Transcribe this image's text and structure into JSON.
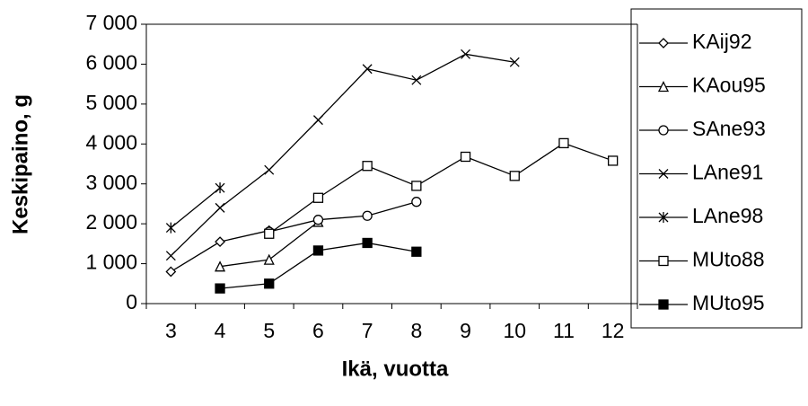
{
  "chart_data": {
    "type": "line",
    "x_label": "Ikä, vuotta",
    "y_label": "Keskipaino, g",
    "categories": [
      "3",
      "4",
      "5",
      "6",
      "7",
      "8",
      "9",
      "10",
      "11",
      "12"
    ],
    "ylim": [
      0,
      7000
    ],
    "yticks": [
      0,
      {
        "value": 1000,
        "label": "1 000"
      },
      {
        "value": 2000,
        "label": "2 000"
      },
      {
        "value": 3000,
        "label": "3 000"
      },
      {
        "value": 4000,
        "label": "4 000"
      },
      {
        "value": 5000,
        "label": "5 000"
      },
      {
        "value": 6000,
        "label": "6 000"
      },
      {
        "value": 7000,
        "label": "7 000"
      }
    ],
    "grid": false,
    "legend": "right",
    "series": [
      {
        "name": "KAij92",
        "color": "#000000",
        "marker": "diamond",
        "values": [
          800,
          1550,
          1830,
          null,
          null,
          null,
          null,
          null,
          null,
          null
        ]
      },
      {
        "name": "KAou95",
        "color": "#000000",
        "marker": "triangle",
        "values": [
          null,
          930,
          1100,
          2050,
          null,
          null,
          null,
          null,
          null,
          null
        ]
      },
      {
        "name": "SAne93",
        "color": "#000000",
        "marker": "circle",
        "values": [
          null,
          null,
          1800,
          2100,
          2200,
          2550,
          null,
          null,
          null,
          null
        ]
      },
      {
        "name": "LAne91",
        "color": "#000000",
        "marker": "x",
        "values": [
          1200,
          2400,
          3350,
          4600,
          5880,
          5600,
          6250,
          6050,
          null,
          null
        ]
      },
      {
        "name": "LAne98",
        "color": "#000000",
        "marker": "star",
        "values": [
          1900,
          2900,
          null,
          null,
          null,
          null,
          null,
          null,
          null,
          null
        ]
      },
      {
        "name": "MUto88",
        "color": "#000000",
        "marker": "square",
        "values": [
          null,
          null,
          1750,
          2650,
          3450,
          2950,
          3680,
          3200,
          4020,
          3580
        ]
      },
      {
        "name": "MUto95",
        "color": "#000000",
        "marker": "filled-square",
        "values": [
          null,
          380,
          500,
          1330,
          1520,
          1300,
          null,
          null,
          null,
          null
        ]
      }
    ]
  }
}
